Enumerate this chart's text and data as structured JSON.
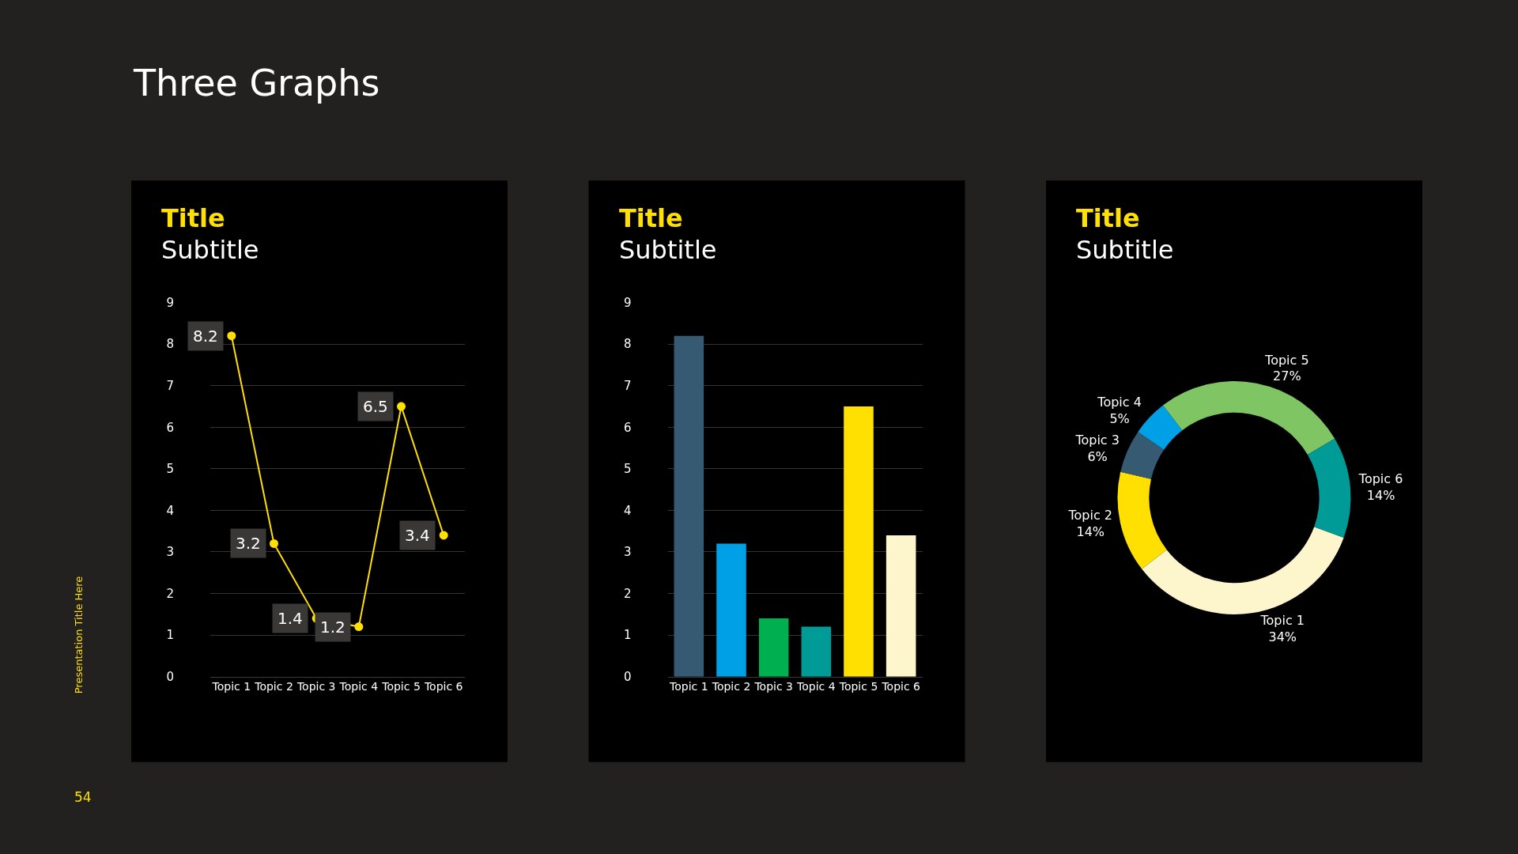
{
  "chart_data": [
    {
      "type": "other",
      "title": "Three Graphs",
      "annotations": [
        "Presentation Title Here",
        "54"
      ]
    },
    {
      "type": "line",
      "title": "Title",
      "subtitle": "Subtitle",
      "categories": [
        "Topic 1",
        "Topic 2",
        "Topic 3",
        "Topic 4",
        "Topic 5",
        "Topic 6"
      ],
      "series": [
        {
          "color": "#ffe000",
          "values": [
            8.2,
            3.2,
            1.4,
            1.2,
            6.5,
            3.4
          ]
        }
      ],
      "ylim": [
        0,
        9
      ],
      "yticks": [
        0,
        1,
        2,
        3,
        4,
        5,
        6,
        7,
        8,
        9
      ],
      "grid": "y",
      "marker": "circle",
      "line_style": "solid",
      "data_labels": true
    },
    {
      "type": "bar",
      "title": "Title",
      "subtitle": "Subtitle",
      "categories": [
        "Topic 1",
        "Topic 2",
        "Topic 3",
        "Topic 4",
        "Topic 5",
        "Topic 6"
      ],
      "values": [
        8.2,
        3.2,
        1.4,
        1.2,
        6.5,
        3.4
      ],
      "colors": [
        "#375a73",
        "#00a0e6",
        "#00b050",
        "#009b96",
        "#ffe000",
        "#fdf5cc"
      ],
      "ylim": [
        0,
        9
      ],
      "yticks": [
        0,
        1,
        2,
        3,
        4,
        5,
        6,
        7,
        8,
        9
      ],
      "grid": "y"
    },
    {
      "type": "donut",
      "title": "Title",
      "subtitle": "Subtitle",
      "categories": [
        "Topic 1",
        "Topic 2",
        "Topic 3",
        "Topic 4",
        "Topic 5",
        "Topic 6"
      ],
      "values": [
        34,
        14,
        6,
        5,
        27,
        14
      ],
      "value_labels": [
        "34%",
        "14%",
        "6%",
        "5%",
        "27%",
        "14%"
      ],
      "colors": [
        "#fdf5cc",
        "#ffe000",
        "#375a73",
        "#00a0e6",
        "#80c563",
        "#009b96"
      ]
    }
  ]
}
